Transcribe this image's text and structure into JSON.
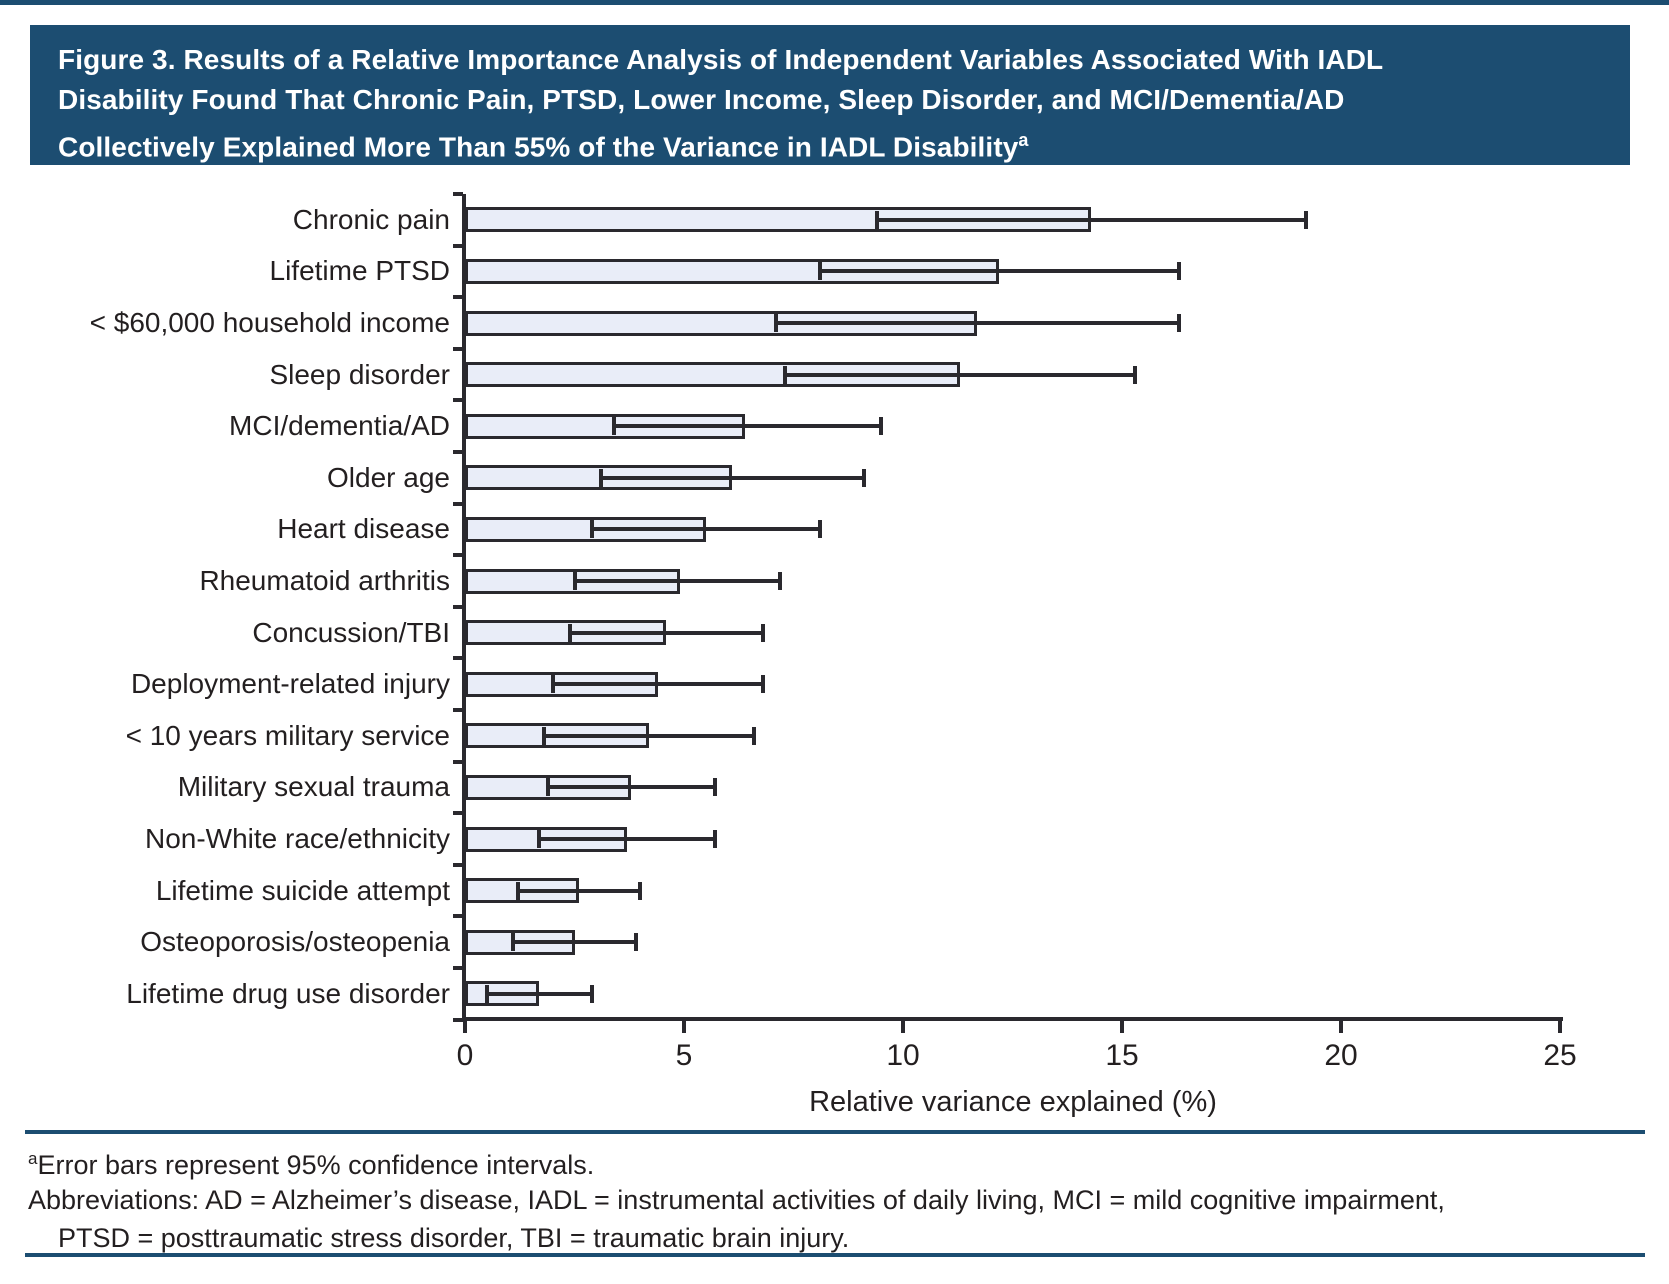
{
  "title": {
    "lines": [
      "Figure 3. Results of a Relative Importance Analysis of Independent Variables Associated With IADL",
      "Disability Found That Chronic Pain, PTSD, Lower Income, Sleep Disorder, and MCI/Dementia/AD",
      "Collectively Explained More Than 55% of the Variance in IADL Disability"
    ],
    "superscript": "a"
  },
  "chart_data": {
    "type": "bar",
    "orientation": "horizontal",
    "title": "Relative importance analysis of independent variables associated with IADL disability",
    "categories": [
      "Chronic pain",
      "Lifetime PTSD",
      "< $60,000 household income",
      "Sleep disorder",
      "MCI/dementia/AD",
      "Older age",
      "Heart disease",
      "Rheumatoid arthritis",
      "Concussion/TBI",
      "Deployment-related injury",
      "< 10 years military service",
      "Military sexual trauma",
      "Non-White race/ethnicity",
      "Lifetime suicide attempt",
      "Osteoporosis/osteopenia",
      "Lifetime drug use disorder"
    ],
    "series": [
      {
        "name": "Relative variance explained (%)",
        "values": [
          14.3,
          12.2,
          11.7,
          11.3,
          6.4,
          6.1,
          5.5,
          4.9,
          4.6,
          4.4,
          4.2,
          3.8,
          3.7,
          2.6,
          2.5,
          1.7
        ]
      }
    ],
    "error_bars": {
      "type": "95% confidence interval",
      "low": [
        9.4,
        8.1,
        7.1,
        7.3,
        3.4,
        3.1,
        2.9,
        2.5,
        2.4,
        2.0,
        1.8,
        1.9,
        1.7,
        1.2,
        1.1,
        0.5
      ],
      "high": [
        19.2,
        16.3,
        16.3,
        15.3,
        9.5,
        9.1,
        8.1,
        7.2,
        6.8,
        6.8,
        6.6,
        5.7,
        5.7,
        4.0,
        3.9,
        2.9
      ]
    },
    "xlabel": "Relative variance explained (%)",
    "ylabel": "",
    "xlim": [
      0,
      25
    ],
    "xticks": [
      0,
      5,
      10,
      15,
      20,
      25
    ],
    "grid": false,
    "legend": "none",
    "bar_fill": "#e9edf8",
    "bar_stroke": "#2a292e"
  },
  "footnotes": {
    "note_superscript": "a",
    "note": "Error bars represent 95% confidence intervals.",
    "abbreviations_line1": "Abbreviations: AD = Alzheimer’s disease, IADL = instrumental activities of daily living, MCI = mild cognitive impairment,",
    "abbreviations_line2": "PTSD = posttraumatic stress disorder, TBI = traumatic brain injury."
  },
  "colors": {
    "banner_blue": "#1c4d71",
    "rule_blue": "#1c4d71",
    "text": "#231f20"
  }
}
